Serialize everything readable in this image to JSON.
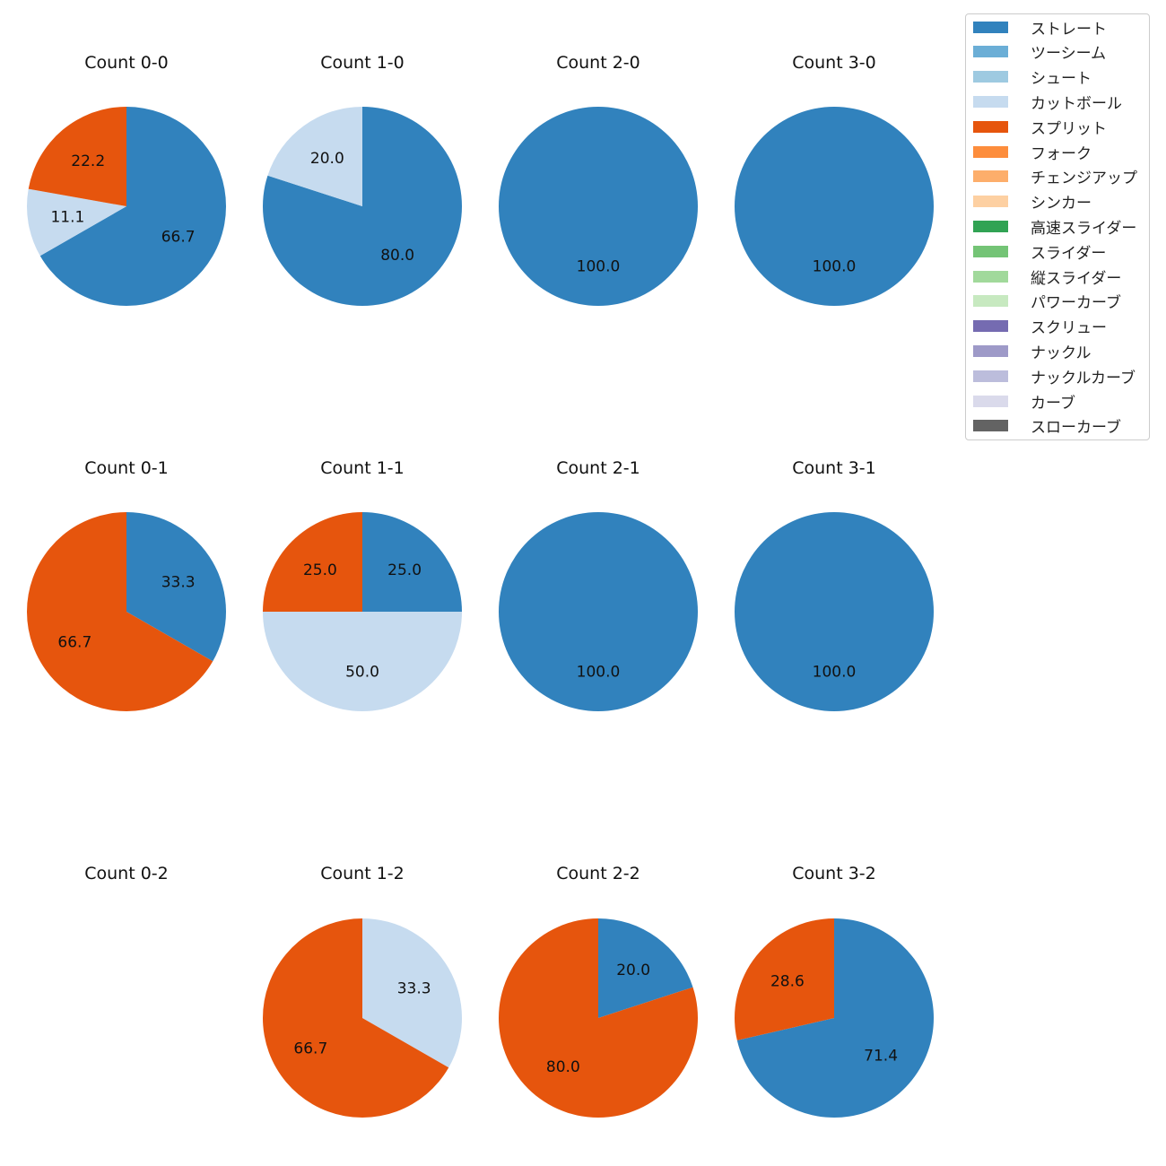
{
  "chart_data": {
    "type": "pie",
    "categories": [
      "ストレート",
      "ツーシーム",
      "シュート",
      "カットボール",
      "スプリット",
      "フォーク",
      "チェンジアップ",
      "シンカー",
      "高速スライダー",
      "スライダー",
      "縦スライダー",
      "パワーカーブ",
      "スクリュー",
      "ナックル",
      "ナックルカーブ",
      "カーブ",
      "スローカーブ"
    ],
    "colors": [
      "#3182bd",
      "#6baed6",
      "#9ecae1",
      "#c6dbef",
      "#e6550d",
      "#fd8d3c",
      "#fdae6b",
      "#fdd0a2",
      "#31a354",
      "#74c476",
      "#a1d99b",
      "#c7e9c0",
      "#756bb1",
      "#9e9ac8",
      "#bcbddc",
      "#dadaeb",
      "#636363"
    ],
    "legend_position": "top-right",
    "start_angle_deg": 90,
    "direction": "clockwise",
    "pies": [
      {
        "title": "Count 0-0",
        "slices": [
          {
            "category": "ストレート",
            "value": 66.7
          },
          {
            "category": "カットボール",
            "value": 11.1
          },
          {
            "category": "スプリット",
            "value": 22.2
          }
        ]
      },
      {
        "title": "Count 1-0",
        "slices": [
          {
            "category": "ストレート",
            "value": 80.0
          },
          {
            "category": "カットボール",
            "value": 20.0
          }
        ]
      },
      {
        "title": "Count 2-0",
        "slices": [
          {
            "category": "ストレート",
            "value": 100.0
          }
        ]
      },
      {
        "title": "Count 3-0",
        "slices": [
          {
            "category": "ストレート",
            "value": 100.0
          }
        ]
      },
      {
        "title": "Count 0-1",
        "slices": [
          {
            "category": "ストレート",
            "value": 33.3
          },
          {
            "category": "スプリット",
            "value": 66.7
          }
        ]
      },
      {
        "title": "Count 1-1",
        "slices": [
          {
            "category": "ストレート",
            "value": 25.0
          },
          {
            "category": "カットボール",
            "value": 50.0
          },
          {
            "category": "スプリット",
            "value": 25.0
          }
        ]
      },
      {
        "title": "Count 2-1",
        "slices": [
          {
            "category": "ストレート",
            "value": 100.0
          }
        ]
      },
      {
        "title": "Count 3-1",
        "slices": [
          {
            "category": "ストレート",
            "value": 100.0
          }
        ]
      },
      {
        "title": "Count 0-2",
        "slices": []
      },
      {
        "title": "Count 1-2",
        "slices": [
          {
            "category": "カットボール",
            "value": 33.3
          },
          {
            "category": "スプリット",
            "value": 66.7
          }
        ]
      },
      {
        "title": "Count 2-2",
        "slices": [
          {
            "category": "ストレート",
            "value": 20.0
          },
          {
            "category": "スプリット",
            "value": 80.0
          }
        ]
      },
      {
        "title": "Count 3-2",
        "slices": [
          {
            "category": "ストレート",
            "value": 71.4
          },
          {
            "category": "スプリット",
            "value": 28.6
          }
        ]
      }
    ]
  }
}
